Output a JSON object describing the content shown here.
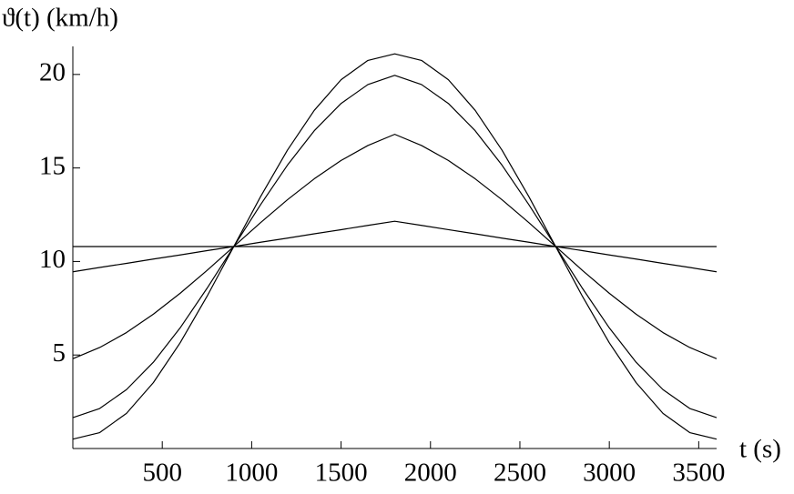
{
  "chart_data": {
    "type": "line",
    "y_label": "ϑ(t) (km/h)",
    "x_label": "t (s)",
    "x": [
      0,
      150,
      300,
      450,
      600,
      750,
      900,
      1050,
      1200,
      1350,
      1500,
      1650,
      1800,
      1950,
      2100,
      2250,
      2400,
      2550,
      2700,
      2850,
      3000,
      3150,
      3300,
      3450,
      3600
    ],
    "series": [
      {
        "color": "#000000",
        "values": [
          10.8,
          10.8,
          10.8,
          10.8,
          10.8,
          10.8,
          10.8,
          10.8,
          10.8,
          10.8,
          10.8,
          10.8,
          10.8,
          10.8,
          10.8,
          10.8,
          10.8,
          10.8,
          10.8,
          10.8,
          10.8,
          10.8,
          10.8,
          10.8,
          10.8
        ]
      },
      {
        "color": "#000000",
        "values": [
          9.45,
          9.68,
          9.9,
          10.13,
          10.35,
          10.58,
          10.8,
          11.03,
          11.25,
          11.48,
          11.7,
          11.93,
          12.15,
          11.93,
          11.7,
          11.48,
          11.25,
          11.03,
          10.8,
          10.58,
          10.35,
          10.13,
          9.9,
          9.68,
          9.45
        ]
      },
      {
        "color": "#000000",
        "values": [
          4.8,
          5.4,
          6.2,
          7.18,
          8.3,
          9.52,
          10.8,
          12.08,
          13.3,
          14.42,
          15.4,
          16.2,
          16.8,
          16.2,
          15.4,
          14.42,
          13.3,
          12.08,
          10.8,
          9.52,
          8.3,
          7.18,
          6.2,
          5.4,
          4.8
        ]
      },
      {
        "color": "#000000",
        "values": [
          1.65,
          2.14,
          3.15,
          4.61,
          6.45,
          8.56,
          10.8,
          13.04,
          15.15,
          16.99,
          18.45,
          19.46,
          19.95,
          19.46,
          18.45,
          16.99,
          15.15,
          13.04,
          10.8,
          8.56,
          6.45,
          4.61,
          3.15,
          2.14,
          1.65
        ]
      },
      {
        "color": "#000000",
        "values": [
          0.5,
          0.85,
          1.88,
          3.52,
          5.65,
          8.13,
          10.8,
          13.47,
          15.95,
          18.08,
          19.72,
          20.75,
          21.1,
          20.75,
          19.72,
          18.08,
          15.95,
          13.47,
          10.8,
          8.13,
          5.65,
          3.52,
          1.88,
          0.85,
          0.5
        ]
      }
    ],
    "xlim": [
      0,
      3600
    ],
    "ylim": [
      0,
      21.5
    ],
    "xticks": [
      500,
      1000,
      1500,
      2000,
      2500,
      3000,
      3500
    ],
    "yticks": [
      5,
      10,
      15,
      20
    ]
  }
}
